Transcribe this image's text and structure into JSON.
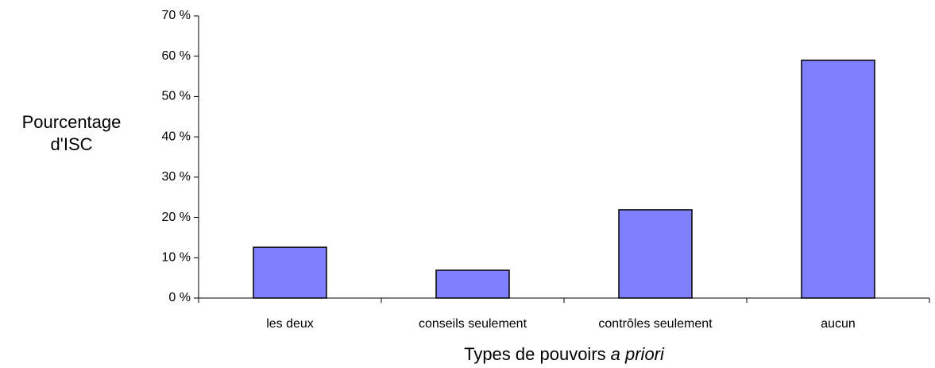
{
  "chart_data": {
    "type": "bar",
    "ylabel": "Pourcentage d'ISC",
    "xlabel": [
      "Types de pouvoirs",
      "a priori"
    ],
    "categories": [
      "les deux",
      "conseils seulement",
      "contrôles seulement",
      "aucun"
    ],
    "values": [
      12.6,
      6.9,
      21.9,
      59
    ],
    "color": "#8080ff",
    "ylim": [
      0,
      70
    ],
    "yticks": [
      {
        "value": 0,
        "label": "0 %"
      },
      {
        "value": 10,
        "label": "10 %"
      },
      {
        "value": 20,
        "label": "20 %"
      },
      {
        "value": 30,
        "label": "30 %"
      },
      {
        "value": 40,
        "label": "40 %"
      },
      {
        "value": 50,
        "label": "50 %"
      },
      {
        "value": 60,
        "label": "60 %"
      },
      {
        "value": 70,
        "label": "70 %"
      }
    ]
  }
}
